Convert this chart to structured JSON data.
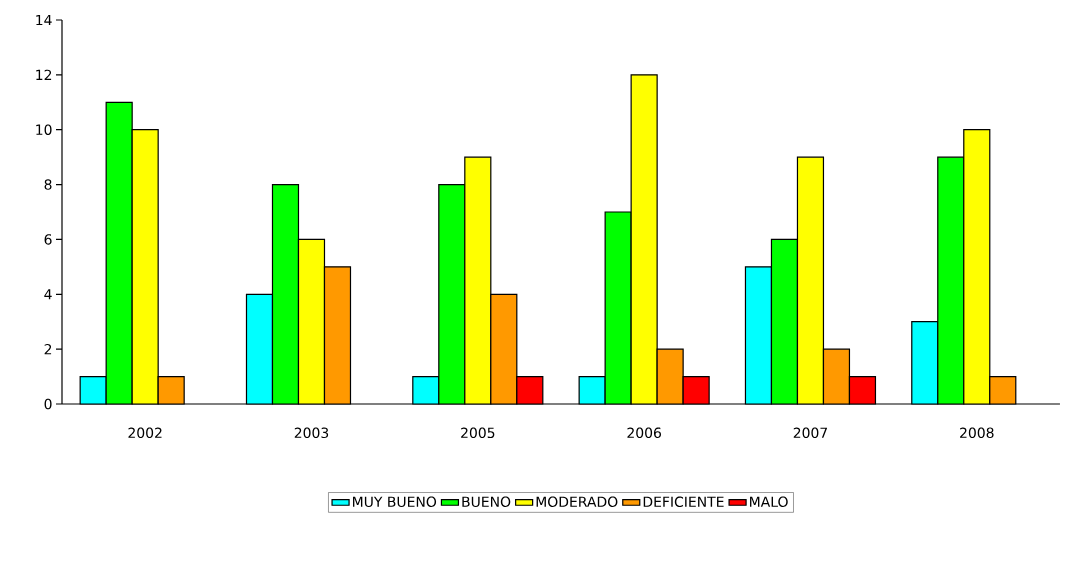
{
  "chart_data": {
    "type": "bar",
    "categories": [
      "2002",
      "2003",
      "2005",
      "2006",
      "2007",
      "2008"
    ],
    "series": [
      {
        "name": "MUY BUENO",
        "color": "#00ffff",
        "values": [
          1,
          4,
          1,
          1,
          5,
          3
        ]
      },
      {
        "name": "BUENO",
        "color": "#00ff00",
        "values": [
          11,
          8,
          8,
          7,
          6,
          9
        ]
      },
      {
        "name": "MODERADO",
        "color": "#ffff00",
        "values": [
          10,
          6,
          9,
          12,
          9,
          10
        ]
      },
      {
        "name": "DEFICIENTE",
        "color": "#ff9900",
        "values": [
          1,
          5,
          4,
          2,
          2,
          1
        ]
      },
      {
        "name": "MALO",
        "color": "#ff0000",
        "values": [
          null,
          null,
          1,
          1,
          1,
          null
        ]
      }
    ],
    "ylim": [
      0,
      14
    ],
    "yticks": [
      0,
      2,
      4,
      6,
      8,
      10,
      12,
      14
    ],
    "grid": false,
    "legend": "bottom"
  }
}
